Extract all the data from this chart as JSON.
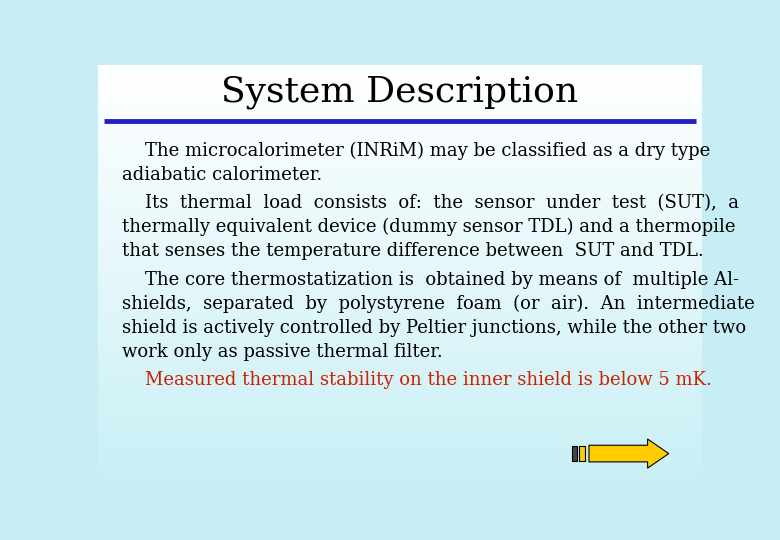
{
  "title": "System Description",
  "title_fontsize": 26,
  "title_color": "#000000",
  "background_color_top": "#ffffff",
  "background_color_bottom": "#c8eef5",
  "line_color": "#2222bb",
  "body_paragraphs": [
    {
      "lines": [
        "    The microcalorimeter (INRiM) may be classified as a dry type",
        "adiabatic calorimeter."
      ],
      "color": "#000000",
      "fontsize": 13.0
    },
    {
      "lines": [
        "    Its  thermal  load  consists  of:  the  sensor  under  test  (SUT),  a",
        "thermally equivalent device (dummy sensor TDL) and a thermopile",
        "that senses the temperature difference between  SUT and TDL."
      ],
      "color": "#000000",
      "fontsize": 13.0
    },
    {
      "lines": [
        "    The core thermostatization is  obtained by means of  multiple Al-",
        "shields,  separated  by  polystyrene  foam  (or  air).  An  intermediate",
        "shield is actively controlled by Peltier junctions, while the other two",
        "work only as passive thermal filter."
      ],
      "color": "#000000",
      "fontsize": 13.0
    },
    {
      "lines": [
        "    Measured thermal stability on the inner shield is below 5 mK."
      ],
      "color": "#cc2200",
      "fontsize": 13.0
    }
  ],
  "arrow_color": "#ffcc00",
  "arrow_edge_color": "#000000"
}
